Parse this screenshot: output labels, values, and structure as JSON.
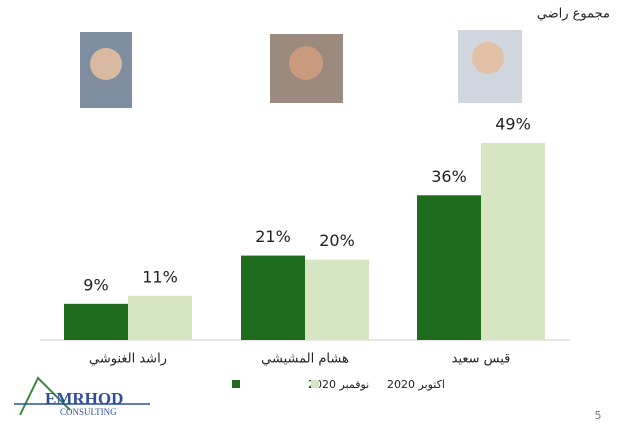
{
  "chart_data": {
    "type": "bar",
    "title": "مجموع راضي",
    "categories": [
      "راشد الغنوشي",
      "هشام المشيشي",
      "قيس سعيد"
    ],
    "series": [
      {
        "name": "نوفمبر 2020",
        "color": "#1e6b1e",
        "values": [
          9,
          21,
          36
        ],
        "value_labels": [
          "9%",
          "21%",
          "36%"
        ]
      },
      {
        "name": "اكتوبر 2020",
        "color": "#d6e6c3",
        "values": [
          11,
          20,
          49
        ],
        "value_labels": [
          "11%",
          "20%",
          "49%"
        ]
      }
    ]
  },
  "slide": {
    "logo_name": "EMRHOD",
    "logo_tagline": "CONSULTING",
    "page_number": "5"
  }
}
